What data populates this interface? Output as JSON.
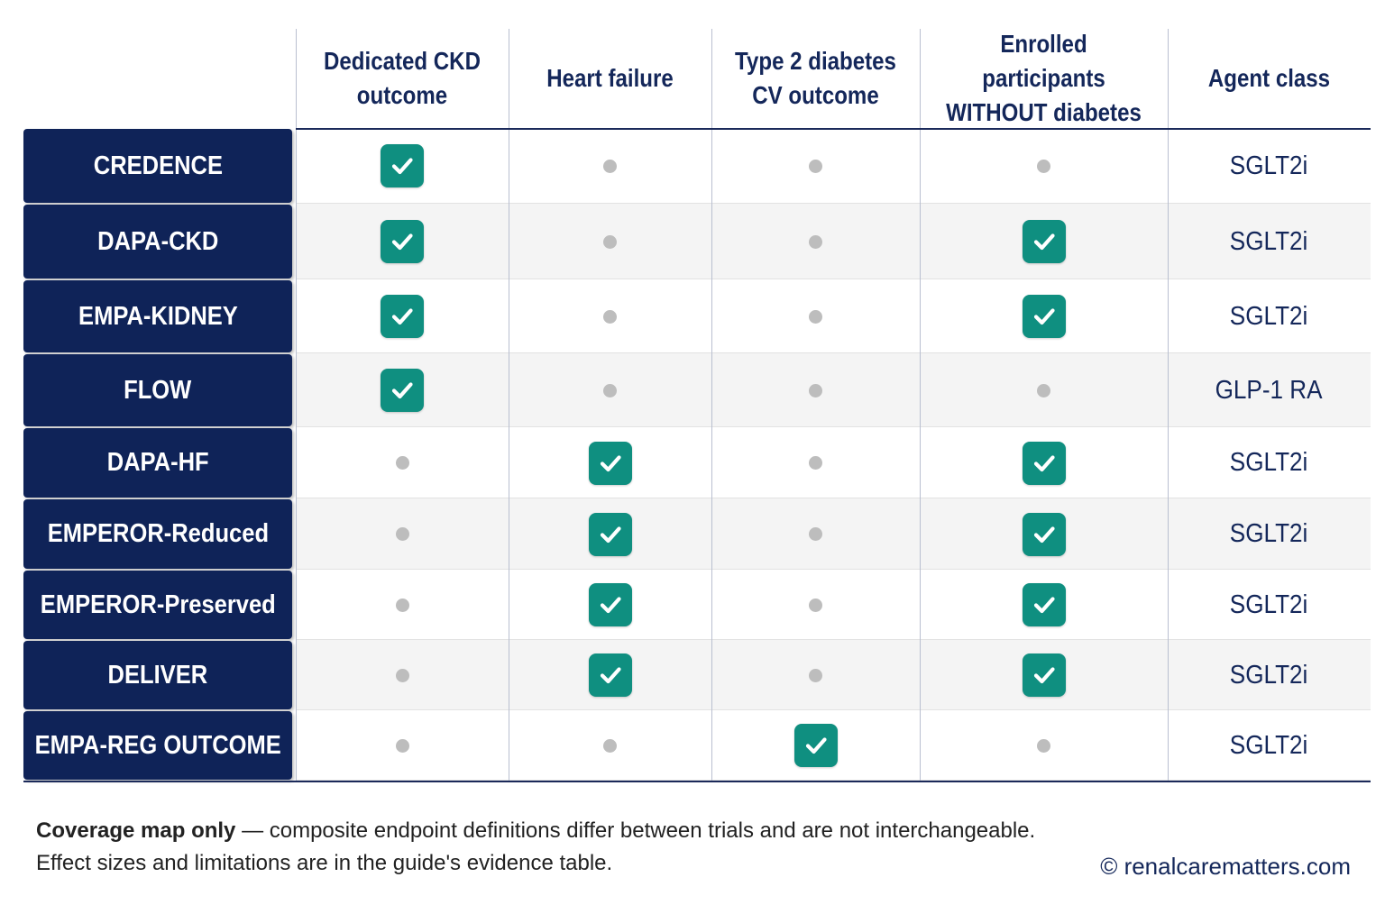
{
  "columns": [
    {
      "key": "ckd",
      "label": "Dedicated CKD\noutcome"
    },
    {
      "key": "hf",
      "label": "Heart failure"
    },
    {
      "key": "t2d",
      "label": "Type 2 diabetes\nCV outcome"
    },
    {
      "key": "nodm",
      "label": "Enrolled participants\nWITHOUT diabetes"
    },
    {
      "key": "agent",
      "label": "Agent class"
    }
  ],
  "rows": [
    {
      "trial": "CREDENCE",
      "ckd": true,
      "hf": false,
      "t2d": false,
      "nodm": false,
      "agent": "SGLT2i"
    },
    {
      "trial": "DAPA-CKD",
      "ckd": true,
      "hf": false,
      "t2d": false,
      "nodm": true,
      "agent": "SGLT2i"
    },
    {
      "trial": "EMPA-KIDNEY",
      "ckd": true,
      "hf": false,
      "t2d": false,
      "nodm": true,
      "agent": "SGLT2i"
    },
    {
      "trial": "FLOW",
      "ckd": true,
      "hf": false,
      "t2d": false,
      "nodm": false,
      "agent": "GLP-1 RA"
    },
    {
      "trial": "DAPA-HF",
      "ckd": false,
      "hf": true,
      "t2d": false,
      "nodm": true,
      "agent": "SGLT2i"
    },
    {
      "trial": "EMPEROR-Reduced",
      "ckd": false,
      "hf": true,
      "t2d": false,
      "nodm": true,
      "agent": "SGLT2i"
    },
    {
      "trial": "EMPEROR-Preserved",
      "ckd": false,
      "hf": true,
      "t2d": false,
      "nodm": true,
      "agent": "SGLT2i"
    },
    {
      "trial": "DELIVER",
      "ckd": false,
      "hf": true,
      "t2d": false,
      "nodm": true,
      "agent": "SGLT2i"
    },
    {
      "trial": "EMPA-REG OUTCOME",
      "ckd": false,
      "hf": false,
      "t2d": true,
      "nodm": false,
      "agent": "SGLT2i"
    }
  ],
  "icons": {
    "included": "check-icon",
    "not_included": "dot-icon"
  },
  "colors": {
    "navy": "#0f2358",
    "teal": "#0f8f80",
    "dot": "#bdbdbd"
  },
  "footnote": {
    "bold": "Coverage map only",
    "line1_rest": " — composite endpoint definitions differ between trials and are not interchangeable.",
    "line2": "Effect sizes and limitations are in the guide's evidence table."
  },
  "copyright": "© renalcarematters.com"
}
